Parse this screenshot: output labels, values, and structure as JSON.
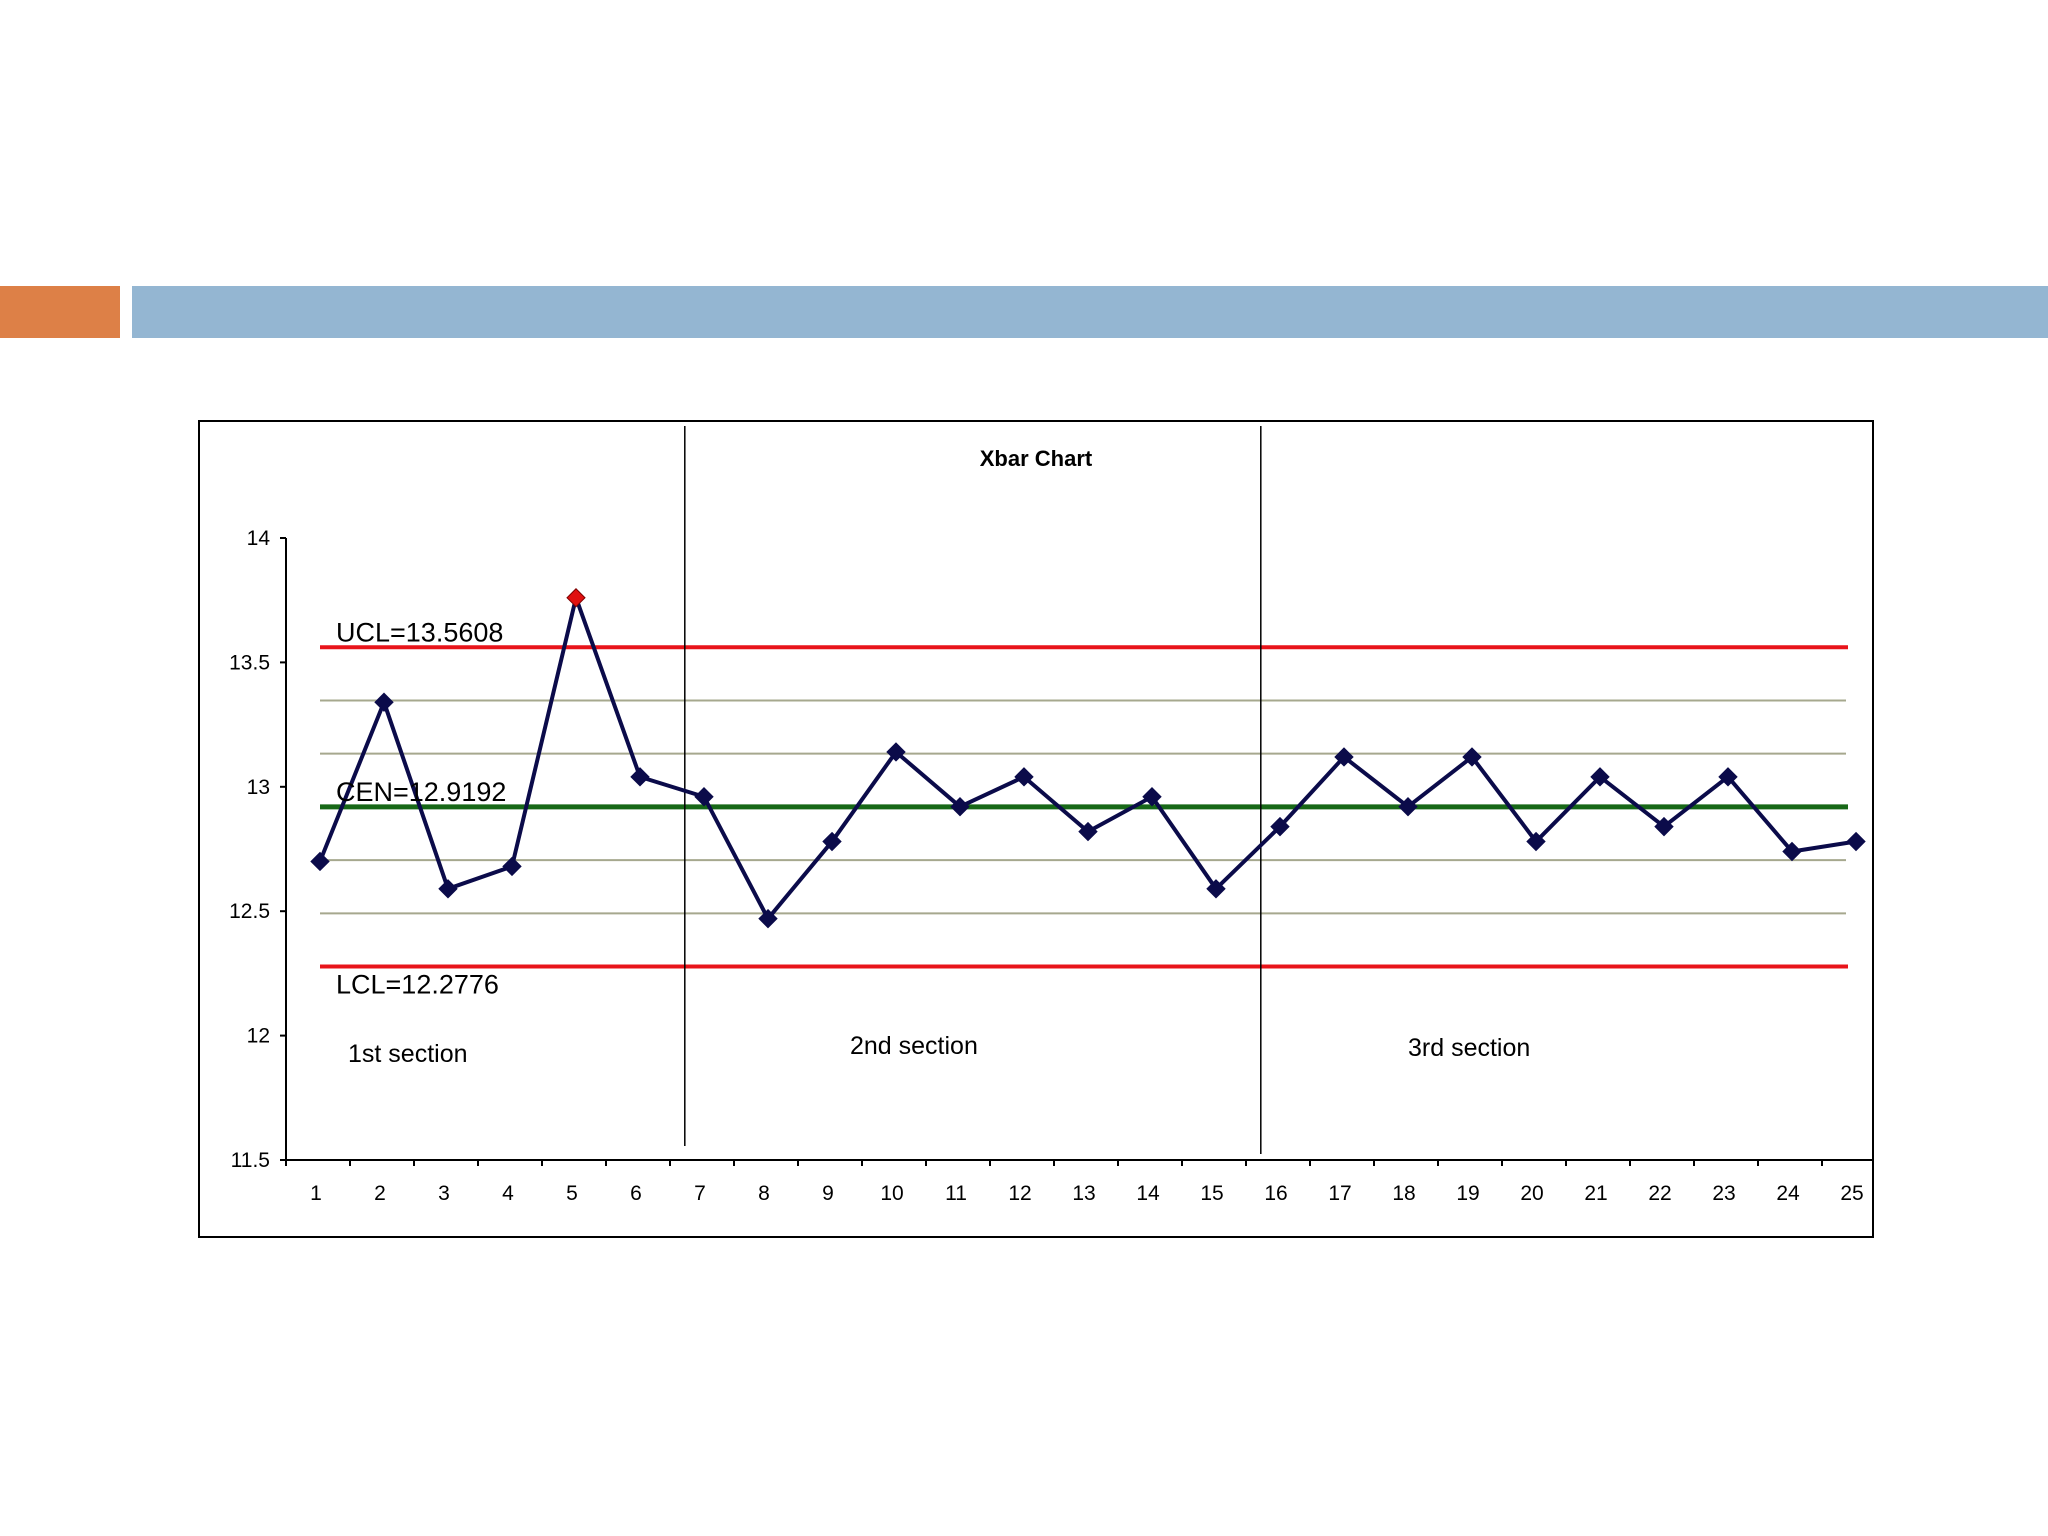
{
  "slide": {
    "accent_colors": {
      "orange": "#dd8047",
      "blue": "#94b6d2"
    }
  },
  "chart_data": {
    "type": "line",
    "title": "Xbar Chart",
    "xlabel": "",
    "ylabel": "",
    "categories": [
      "1",
      "2",
      "3",
      "4",
      "5",
      "6",
      "7",
      "8",
      "9",
      "10",
      "11",
      "12",
      "13",
      "14",
      "15",
      "16",
      "17",
      "18",
      "19",
      "20",
      "21",
      "22",
      "23",
      "24",
      "25"
    ],
    "series": [
      {
        "values": [
          12.7,
          13.34,
          12.59,
          12.68,
          13.76,
          13.04,
          12.96,
          12.47,
          12.78,
          13.14,
          12.92,
          13.04,
          12.82,
          12.96,
          12.59,
          12.84,
          13.12,
          12.92,
          13.12,
          12.78,
          13.04,
          12.84,
          13.04,
          12.74,
          12.78
        ],
        "color": "#0b0b4a",
        "out_of_control_index": 4,
        "out_of_control_color": "#e01010"
      }
    ],
    "y_ticks": [
      "14",
      "13.5",
      "13",
      "12.5",
      "12",
      "11.5"
    ],
    "ylim": [
      11.5,
      14
    ],
    "control_lines": [
      {
        "label": "UCL=13.5608",
        "value": 13.5608,
        "color": "#e8141a"
      },
      {
        "label": "CEN=12.9192",
        "value": 12.9192,
        "color": "#176817"
      },
      {
        "label": "LCL=12.2776",
        "value": 12.2776,
        "color": "#e8141a"
      }
    ],
    "sigma_lines": [
      13.3469,
      13.1331,
      12.7053,
      12.4915
    ],
    "sigma_line_color": "#a6a88e",
    "sections": [
      {
        "label": "1st section"
      },
      {
        "label": "2nd section"
      },
      {
        "label": "3rd section"
      }
    ],
    "section_dividers_after": [
      6.7,
      15.7
    ],
    "grid": false,
    "legend": "none"
  }
}
